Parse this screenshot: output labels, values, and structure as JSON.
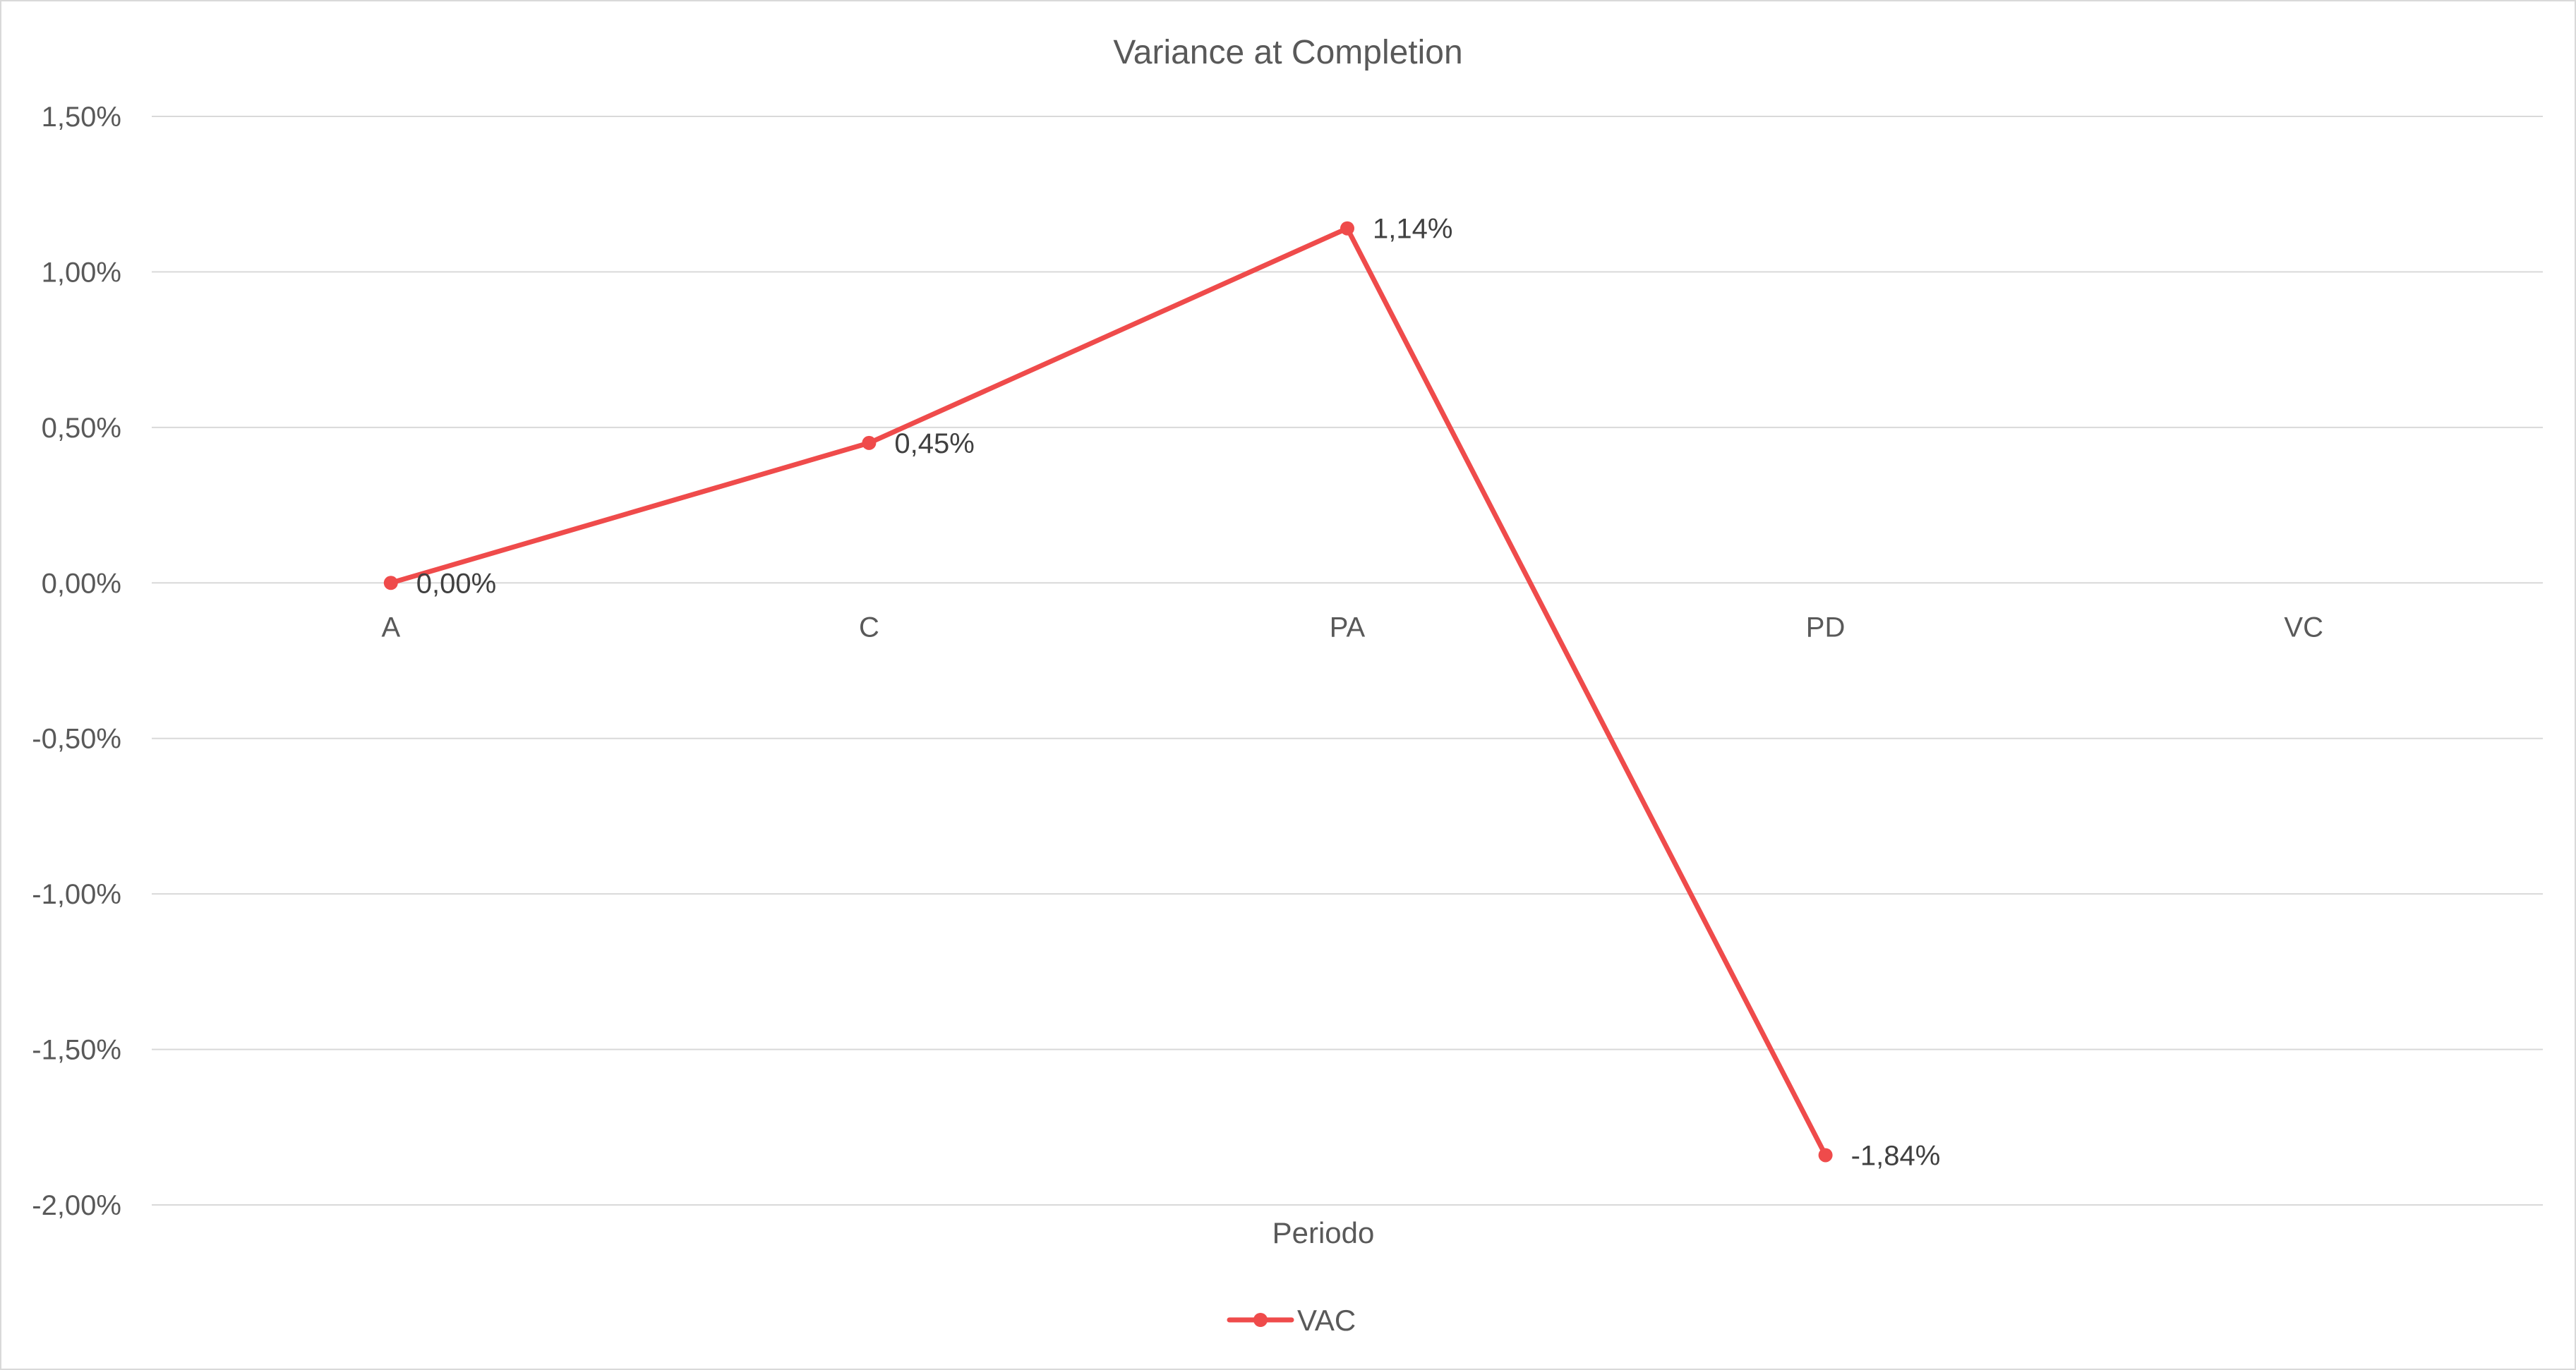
{
  "chart_data": {
    "type": "line",
    "title": "Variance at Completion",
    "xlabel": "Periodo",
    "ylabel": "",
    "categories": [
      "A",
      "C",
      "PA",
      "PD",
      "VC"
    ],
    "series": [
      {
        "name": "VAC",
        "values": [
          0.0,
          0.45,
          1.14,
          -1.84,
          null
        ],
        "labels": [
          "0,00%",
          "0,45%",
          "1,14%",
          "-1,84%",
          null
        ],
        "color": "#ef4b4b"
      }
    ],
    "ylim": [
      -2.0,
      1.5
    ],
    "yticks": [
      1.5,
      1.0,
      0.5,
      0.0,
      -0.5,
      -1.0,
      -1.5,
      -2.0
    ],
    "ytick_labels": [
      "1,50%",
      "1,00%",
      "0,50%",
      "0,00%",
      "-0,50%",
      "-1,00%",
      "-1,50%",
      "-2,00%"
    ],
    "grid": true,
    "legend_position": "bottom",
    "colors": {
      "grid": "#d9d9d9",
      "text": "#595959",
      "series": "#ef4b4b"
    }
  }
}
